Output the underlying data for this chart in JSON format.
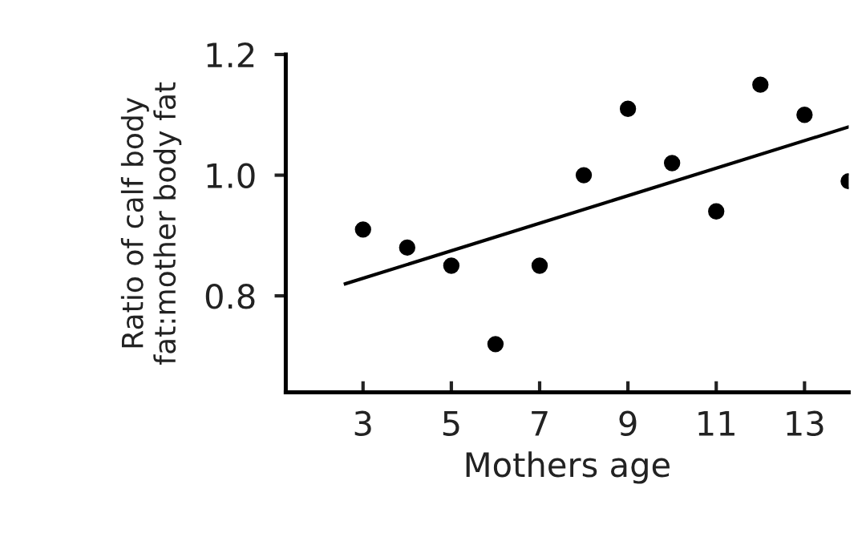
{
  "chart_data": {
    "type": "scatter",
    "xlabel": "Mothers age",
    "ylabel": "Ratio of calf body\nfat:mother body fat",
    "xlim": [
      1.25,
      14
    ],
    "ylim": [
      0.64,
      1.2
    ],
    "xticks": [
      3,
      5,
      7,
      9,
      11,
      13
    ],
    "yticks": [
      0.8,
      {
        "value": 1.0,
        "label": "1.0"
      },
      1.2
    ],
    "grid": false,
    "series": [
      {
        "marker": "circle",
        "color": "#000000",
        "x": [
          3,
          4,
          5,
          6,
          7,
          8,
          9,
          10,
          11,
          12,
          13,
          14
        ],
        "values": [
          0.91,
          0.88,
          0.85,
          0.72,
          0.85,
          1.0,
          1.11,
          1.02,
          0.94,
          1.15,
          1.1,
          0.99
        ]
      },
      {
        "type": "line",
        "marker": "none",
        "color": "#000000",
        "x": [
          2.6,
          14
        ],
        "values": [
          0.82,
          1.08
        ]
      }
    ]
  }
}
